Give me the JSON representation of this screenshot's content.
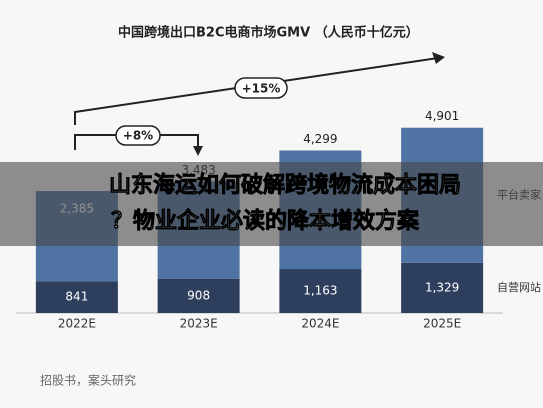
{
  "chart_data": {
    "type": "stacked-bar",
    "title": "中国跨境出口B2C电商市场GMV （人民币十亿元）",
    "categories": [
      "2022E",
      "2023E",
      "2024E",
      "2025E"
    ],
    "series": [
      {
        "name": "自营网站",
        "color": "#2e3f5e",
        "values": [
          841,
          908,
          1163,
          1329
        ],
        "value_labels": [
          "841",
          "908",
          "1,163",
          "1,329"
        ]
      },
      {
        "name": "平台卖家",
        "color": "#4f73a3",
        "values": [
          2385,
          2575,
          3136,
          3572
        ],
        "value_labels": [
          "2,385",
          null,
          null,
          null
        ]
      }
    ],
    "totals": [
      null,
      3483,
      4299,
      4901
    ],
    "total_labels": [
      null,
      "3,483",
      "4,299",
      "4,901"
    ],
    "ylim": [
      0,
      5000
    ],
    "annotations": [
      "+8%",
      "+15%"
    ],
    "source": "招股书，案头研究"
  },
  "overlay": {
    "lines": [
      "山东海运如何破解跨境物流成本困局",
      "？物业企业必读的降本增效方案"
    ]
  }
}
